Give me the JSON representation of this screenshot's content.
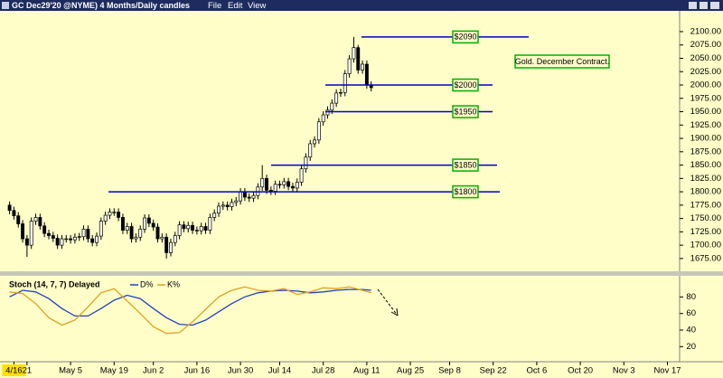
{
  "window": {
    "title": "GC Dec29'20 @NYME) 4 Months/Daily candles",
    "menu": [
      "File",
      "Edit",
      "View"
    ]
  },
  "chart_data": [
    {
      "type": "candlestick",
      "annotation": "Gold. December Contract.",
      "color": "#000000",
      "up_fill": "#ffffff",
      "levels_color": "#0000cc",
      "label_border": "#00b000",
      "open": [
        1775,
        1765,
        1755,
        1740,
        1712,
        1700,
        1745,
        1752,
        1736,
        1722,
        1718,
        1713,
        1700,
        1712,
        1712,
        1710,
        1715,
        1716,
        1730,
        1712,
        1705,
        1717,
        1745,
        1756,
        1762,
        1762,
        1752,
        1728,
        1735,
        1712,
        1715,
        1730,
        1751,
        1741,
        1734,
        1712,
        1715,
        1686,
        1705,
        1718,
        1738,
        1731,
        1737,
        1728,
        1727,
        1735,
        1728,
        1752,
        1760,
        1773,
        1775,
        1772,
        1780,
        1783,
        1800,
        1790,
        1788,
        1793,
        1809,
        1825,
        1803,
        1801,
        1814,
        1813,
        1819,
        1810,
        1807,
        1818,
        1843,
        1865,
        1890,
        1897,
        1931,
        1944,
        1953,
        1966,
        1985,
        1986,
        2021,
        2049,
        2070,
        2028,
        2039,
        2000
      ],
      "high": [
        1782,
        1772,
        1762,
        1747,
        1719,
        1752,
        1759,
        1759,
        1743,
        1729,
        1725,
        1720,
        1719,
        1719,
        1719,
        1722,
        1723,
        1737,
        1737,
        1719,
        1724,
        1752,
        1763,
        1769,
        1769,
        1769,
        1759,
        1742,
        1742,
        1722,
        1737,
        1758,
        1758,
        1748,
        1741,
        1722,
        1722,
        1712,
        1725,
        1745,
        1745,
        1744,
        1744,
        1735,
        1742,
        1742,
        1759,
        1767,
        1780,
        1782,
        1782,
        1787,
        1790,
        1807,
        1807,
        1797,
        1800,
        1816,
        1850,
        1832,
        1810,
        1821,
        1821,
        1826,
        1826,
        1817,
        1825,
        1850,
        1872,
        1897,
        1904,
        1938,
        1951,
        1960,
        1973,
        1992,
        1993,
        2028,
        2056,
        2090,
        2075,
        2046,
        2046,
        2007
      ],
      "low": [
        1758,
        1748,
        1733,
        1705,
        1678,
        1693,
        1738,
        1729,
        1715,
        1711,
        1706,
        1693,
        1693,
        1705,
        1703,
        1703,
        1708,
        1709,
        1705,
        1698,
        1698,
        1710,
        1738,
        1749,
        1755,
        1745,
        1721,
        1721,
        1705,
        1705,
        1708,
        1723,
        1734,
        1727,
        1705,
        1705,
        1675,
        1679,
        1698,
        1711,
        1724,
        1724,
        1721,
        1720,
        1720,
        1721,
        1721,
        1745,
        1753,
        1766,
        1765,
        1765,
        1773,
        1776,
        1783,
        1781,
        1781,
        1786,
        1802,
        1796,
        1794,
        1794,
        1806,
        1806,
        1803,
        1800,
        1800,
        1811,
        1836,
        1858,
        1883,
        1890,
        1924,
        1937,
        1946,
        1959,
        1978,
        1979,
        2014,
        2042,
        2021,
        2021,
        1993,
        1988
      ],
      "close": [
        1765,
        1755,
        1740,
        1712,
        1700,
        1745,
        1752,
        1736,
        1722,
        1718,
        1713,
        1700,
        1712,
        1712,
        1710,
        1715,
        1716,
        1730,
        1712,
        1705,
        1717,
        1745,
        1756,
        1762,
        1762,
        1752,
        1728,
        1735,
        1712,
        1715,
        1730,
        1751,
        1741,
        1734,
        1712,
        1715,
        1686,
        1705,
        1718,
        1738,
        1731,
        1737,
        1728,
        1727,
        1735,
        1728,
        1752,
        1760,
        1773,
        1775,
        1772,
        1780,
        1783,
        1800,
        1790,
        1788,
        1793,
        1809,
        1825,
        1803,
        1801,
        1814,
        1813,
        1819,
        1810,
        1807,
        1818,
        1843,
        1865,
        1890,
        1897,
        1931,
        1944,
        1953,
        1966,
        1985,
        1986,
        2021,
        2049,
        2070,
        2028,
        2039,
        2000,
        1995
      ],
      "levels": [
        {
          "value": 2090,
          "label": "$2090"
        },
        {
          "value": 2000,
          "label": "$2000"
        },
        {
          "value": 1950,
          "label": "$1950"
        },
        {
          "value": 1850,
          "label": "$1850"
        },
        {
          "value": 1800,
          "label": "$1800"
        }
      ],
      "xlim": [
        -2.2,
        153.8
      ],
      "xticks": [
        {
          "value": 1,
          "label": "4/16"
        },
        {
          "value": 4,
          "label": "21"
        },
        {
          "value": 14,
          "label": "May 5"
        },
        {
          "value": 24,
          "label": "May 19"
        },
        {
          "value": 33,
          "label": "Jun 2"
        },
        {
          "value": 43,
          "label": "Jun 16"
        },
        {
          "value": 53,
          "label": "Jun 30"
        },
        {
          "value": 62,
          "label": "Jul 14"
        },
        {
          "value": 72,
          "label": "Jul 28"
        },
        {
          "value": 82,
          "label": "Aug 11"
        },
        {
          "value": 92,
          "label": "Aug 25"
        },
        {
          "value": 101,
          "label": "Sep 8"
        },
        {
          "value": 111,
          "label": "Sep 22"
        },
        {
          "value": 121,
          "label": "Oct 6"
        },
        {
          "value": 131,
          "label": "Oct 20"
        },
        {
          "value": 141,
          "label": "Nov 3"
        },
        {
          "value": 151,
          "label": "Nov 17"
        }
      ],
      "ylim": [
        1655,
        2135
      ],
      "yticks": [
        {
          "value": 1675,
          "label": "1675.00"
        },
        {
          "value": 1700,
          "label": "1700.00"
        },
        {
          "value": 1725,
          "label": "1725.00"
        },
        {
          "value": 1750,
          "label": "1750.00"
        },
        {
          "value": 1775,
          "label": "1775.00"
        },
        {
          "value": 1800,
          "label": "1800.00"
        },
        {
          "value": 1825,
          "label": "1825.00"
        },
        {
          "value": 1850,
          "label": "1850.00"
        },
        {
          "value": 1875,
          "label": "1875.00"
        },
        {
          "value": 1900,
          "label": "1900.00"
        },
        {
          "value": 1925,
          "label": "1925.00"
        },
        {
          "value": 1950,
          "label": "1950.00"
        },
        {
          "value": 1975,
          "label": "1975.00"
        },
        {
          "value": 2000,
          "label": "2000.00"
        },
        {
          "value": 2025,
          "label": "2025.00"
        },
        {
          "value": 2050,
          "label": "2050.00"
        },
        {
          "value": 2075,
          "label": "2075.00"
        },
        {
          "value": 2100,
          "label": "2100.00"
        }
      ]
    },
    {
      "type": "line",
      "title": "Stoch (14, 7, 7) Delayed",
      "x": [
        0,
        3,
        6,
        9,
        12,
        15,
        18,
        21,
        24,
        27,
        30,
        33,
        36,
        39,
        42,
        45,
        48,
        51,
        54,
        57,
        60,
        63,
        66,
        69,
        72,
        75,
        78,
        81,
        83
      ],
      "series": [
        {
          "name": "D%",
          "color": "#2040c0",
          "values": [
            80,
            88,
            86,
            78,
            66,
            57,
            57,
            66,
            76,
            82,
            78,
            66,
            55,
            47,
            46,
            52,
            62,
            72,
            80,
            85,
            87,
            88,
            87,
            85,
            86,
            88,
            89,
            89,
            88
          ]
        },
        {
          "name": "K%",
          "color": "#e0a020",
          "values": [
            86,
            84,
            72,
            55,
            46,
            52,
            68,
            85,
            90,
            75,
            60,
            44,
            36,
            37,
            50,
            65,
            80,
            88,
            92,
            88,
            87,
            90,
            83,
            86,
            91,
            90,
            92,
            88,
            85
          ]
        }
      ],
      "xlim": [
        -2.2,
        153.8
      ],
      "ylim": [
        4,
        100
      ],
      "yticks": [
        20,
        40,
        60,
        80
      ]
    }
  ]
}
